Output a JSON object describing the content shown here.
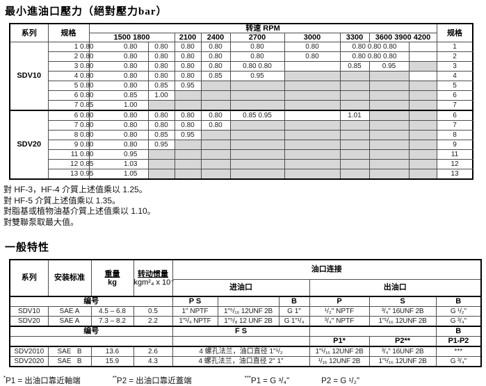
{
  "table1": {
    "title": "最小進油口壓力（絕對壓力bar）",
    "header": {
      "series": "系列",
      "spec": "规格",
      "rpm": "转速 RPM",
      "spec_right": "规格",
      "rpm_cols": [
        "1500 1800",
        "2100",
        "2400",
        "2700",
        "3000",
        "3300",
        "3600 3900 4200",
        ""
      ]
    },
    "groups": [
      {
        "series": "SDV10",
        "rows": [
          {
            "spec": "1 0.80",
            "r": "1",
            "cells": [
              {
                "t": "0.80"
              },
              {
                "t": "0.80"
              },
              {
                "t": "0.80"
              },
              {
                "t": "0.80"
              },
              {
                "t": "0.80"
              },
              {
                "t": "0.80"
              },
              {
                "t": "0.80 0.80 0.80",
                "cs": 2
              },
              {
                "t": ""
              }
            ]
          },
          {
            "spec": "2 0.80",
            "r": "2",
            "cells": [
              {
                "t": "0.80"
              },
              {
                "t": "0.80"
              },
              {
                "t": "0.80"
              },
              {
                "t": "0.80"
              },
              {
                "t": "0.80"
              },
              {
                "t": "0.80"
              },
              {
                "t": "0.80 0.80 0.80",
                "cs": 2
              },
              {
                "t": ""
              }
            ]
          },
          {
            "spec": "3 0.80",
            "r": "3",
            "cells": [
              {
                "t": "0.80"
              },
              {
                "t": "0.80"
              },
              {
                "t": "0.80"
              },
              {
                "t": "0.80"
              },
              {
                "t": "0.80 0.80"
              },
              {
                "t": ""
              },
              {
                "t": "0.85"
              },
              {
                "t": "0.95"
              },
              {
                "g": 1
              }
            ]
          },
          {
            "spec": "4 0.80",
            "r": "4",
            "cells": [
              {
                "t": "0.80"
              },
              {
                "t": "0.80"
              },
              {
                "t": "0.80"
              },
              {
                "t": "0.85"
              },
              {
                "t": "0.95"
              },
              {
                "g": 1
              },
              {
                "g": 1
              },
              {
                "g": 1
              },
              {
                "t": ""
              }
            ]
          },
          {
            "spec": "5 0.80",
            "r": "5",
            "cells": [
              {
                "t": "0.80"
              },
              {
                "t": "0.85"
              },
              {
                "t": "0.95"
              },
              {
                "g": 1
              },
              {
                "g": 1
              },
              {
                "g": 1
              },
              {
                "g": 1
              },
              {
                "g": 1
              },
              {
                "g": 1
              }
            ]
          },
          {
            "spec": "6 0.80",
            "r": "6",
            "cells": [
              {
                "t": "0.85"
              },
              {
                "t": "1.00"
              },
              {
                "g": 1
              },
              {
                "g": 1
              },
              {
                "g": 1
              },
              {
                "g": 1
              },
              {
                "g": 1
              },
              {
                "g": 1
              },
              {
                "g": 1
              }
            ]
          },
          {
            "spec": "7 0.85",
            "r": "7",
            "cells": [
              {
                "t": "1.00"
              },
              {
                "g": 1
              },
              {
                "g": 1
              },
              {
                "g": 1
              },
              {
                "g": 1
              },
              {
                "g": 1
              },
              {
                "g": 1
              },
              {
                "g": 1
              },
              {
                "g": 1
              }
            ]
          }
        ]
      },
      {
        "series": "SDV20",
        "rows": [
          {
            "spec": "6 0.80",
            "r": "6",
            "cells": [
              {
                "t": "0.80"
              },
              {
                "t": "0.80"
              },
              {
                "t": "0.80"
              },
              {
                "t": "0.80"
              },
              {
                "t": "0.85 0.95"
              },
              {
                "t": ""
              },
              {
                "t": "1.01"
              },
              {
                "g": 1
              },
              {
                "g": 1
              }
            ]
          },
          {
            "spec": "7 0.80",
            "r": "7",
            "cells": [
              {
                "t": "0.80"
              },
              {
                "t": "0.80"
              },
              {
                "t": "0.80"
              },
              {
                "t": "0.80"
              },
              {
                "g": 1
              },
              {
                "g": 1
              },
              {
                "g": 1
              },
              {
                "g": 1
              },
              {
                "g": 1
              }
            ]
          },
          {
            "spec": "8 0.80",
            "r": "8",
            "cells": [
              {
                "t": "0.80"
              },
              {
                "t": "0.85"
              },
              {
                "t": "0.95"
              },
              {
                "g": 1
              },
              {
                "g": 1
              },
              {
                "g": 1
              },
              {
                "g": 1
              },
              {
                "g": 1
              },
              {
                "g": 1
              }
            ]
          },
          {
            "spec": "9 0.80",
            "r": "9",
            "cells": [
              {
                "t": "0.80"
              },
              {
                "t": "0.95"
              },
              {
                "g": 1
              },
              {
                "g": 1
              },
              {
                "g": 1
              },
              {
                "g": 1
              },
              {
                "g": 1
              },
              {
                "g": 1
              },
              {
                "g": 1
              }
            ]
          },
          {
            "spec": "11 0.80",
            "r": "11",
            "cells": [
              {
                "t": "0.95"
              },
              {
                "g": 1
              },
              {
                "g": 1
              },
              {
                "g": 1
              },
              {
                "g": 1
              },
              {
                "g": 1
              },
              {
                "g": 1
              },
              {
                "g": 1
              },
              {
                "g": 1
              }
            ]
          },
          {
            "spec": "12 0.85",
            "r": "12",
            "cells": [
              {
                "t": "1.03"
              },
              {
                "g": 1
              },
              {
                "g": 1
              },
              {
                "g": 1
              },
              {
                "g": 1
              },
              {
                "g": 1
              },
              {
                "g": 1
              },
              {
                "g": 1
              },
              {
                "g": 1
              }
            ]
          },
          {
            "spec": "13 0.95",
            "r": "13",
            "cells": [
              {
                "t": "1.05"
              },
              {
                "g": 1
              },
              {
                "g": 1
              },
              {
                "g": 1
              },
              {
                "g": 1
              },
              {
                "g": 1
              },
              {
                "g": 1
              },
              {
                "g": 1
              },
              {
                "g": 1
              }
            ]
          }
        ]
      }
    ],
    "notes": [
      "對 HF-3，HF-4 介質上述值乘以 1.25。",
      "對 HF-5 介質上述值乘以 1.35。",
      "對脂基或植物油基介質上述值乘以 1.10。",
      "對雙聯泵取最大值。"
    ]
  },
  "table2": {
    "title": "一般特性",
    "header": {
      "series": "系列",
      "mount": "安装标准",
      "weight": "重量",
      "weight_unit": "kg",
      "inertia": "转动惯量",
      "inertia_unit": "kgm²₄ x 10⁻",
      "ports": "油口连接",
      "inlet": "进油口",
      "outlet": "出油口"
    },
    "body": [
      {
        "cls": "tk",
        "cells": [
          {
            "t": "编号",
            "cs": 4,
            "h": 1
          },
          {
            "t": "P S",
            "h": 1
          },
          {
            "t": ""
          },
          {
            "t": "B",
            "h": 1
          },
          {
            "t": "P",
            "h": 1
          },
          {
            "t": "S",
            "h": 1
          },
          {
            "t": "B",
            "h": 1
          }
        ]
      },
      {
        "cells": [
          {
            "t": "SDV10"
          },
          {
            "t": "SAE A"
          },
          {
            "t": "4.5 – 6.8"
          },
          {
            "t": "0.5"
          },
          {
            "t": "1\" NPTF"
          },
          {
            "t": "1\"⁵/₁₆ 12UNF 2B",
            "sm": 1
          },
          {
            "t": "G 1\""
          },
          {
            "t": "¹/₂\" NPTF"
          },
          {
            "t": "³/₄\" 16UNF 2B",
            "sm": 1
          },
          {
            "t": "G ¹/₂\"",
            "sm": 1
          }
        ]
      },
      {
        "cells": [
          {
            "t": "SDV20"
          },
          {
            "t": "SAE A"
          },
          {
            "t": "7.3 – 8.2"
          },
          {
            "t": "2.2"
          },
          {
            "t": "1\"¹/₄ NPTF",
            "sm": 1
          },
          {
            "t": "1\"⁵/₈ 12 UNF 2B",
            "sm": 1
          },
          {
            "t": "G 1\"¹/₄",
            "sm": 1
          },
          {
            "t": "³/₄\" NPTF"
          },
          {
            "t": "1\"¹/₁₆ 12UNF 2B",
            "sm": 1
          },
          {
            "t": "G ³/₄\"",
            "sm": 1
          }
        ]
      },
      {
        "cls": "tk",
        "cells": [
          {
            "t": "编号",
            "cs": 4,
            "h": 1
          },
          {
            "t": "F S",
            "cs": 3,
            "h": 1
          },
          {
            "t": "",
            "cs": 2
          },
          {
            "t": "B",
            "h": 1
          }
        ]
      },
      {
        "cells": [
          {
            "t": "",
            "cs": 4
          },
          {
            "t": "",
            "cs": 3
          },
          {
            "t": "P1*",
            "h": 1
          },
          {
            "t": "P2**",
            "h": 1
          },
          {
            "t": "P1-P2",
            "h": 1,
            "sm": 1
          }
        ]
      },
      {
        "cls": "tk",
        "cells": [
          {
            "t": "SDV2010"
          },
          {
            "t": "SAE   B",
            "pre": 1
          },
          {
            "t": "13.6"
          },
          {
            "t": "2.6"
          },
          {
            "t": "4 螺孔法兰，油口直径 1\"¹/₂",
            "cs": 3
          },
          {
            "t": "1\"¹/₁₆ 12UNF 2B",
            "sm": 1
          },
          {
            "t": "³/₄\" 16UNF 2B",
            "sm": 1
          },
          {
            "t": "***"
          }
        ]
      },
      {
        "cells": [
          {
            "t": "SDV2020"
          },
          {
            "t": "SAE   B",
            "pre": 1
          },
          {
            "t": "15.9"
          },
          {
            "t": "4.3"
          },
          {
            "t": "4 螺孔法兰，油口直径 2\" 1\"",
            "cs": 3
          },
          {
            "t": "¹/₁₆ 12UNF 2B",
            "sm": 1
          },
          {
            "t": "1\"¹/₁₆ 12UNF 2B",
            "sm": 1
          },
          {
            "t": "G ³/₄\"",
            "sm": 1
          }
        ]
      }
    ],
    "footnotes": [
      {
        "sup": "*",
        "text": "P1 = 出油口靠近軸端"
      },
      {
        "sup": "**",
        "text": "P2 = 出油口靠近蓋端"
      },
      {
        "sup": "***",
        "text": "P1 = G ³/₄\""
      },
      {
        "sup": "",
        "text": "P2 = G ¹/₂\""
      }
    ]
  },
  "colors": {
    "shaded_cell": "#d7d7d7",
    "border": "#4c4c4c"
  }
}
